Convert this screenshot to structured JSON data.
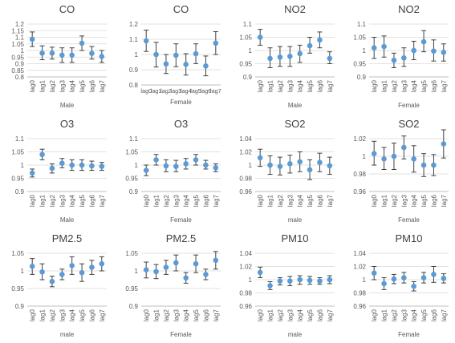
{
  "colors": {
    "marker": "#5b9bd5",
    "errorbar": "#404040",
    "axis": "#bfbfbf",
    "gridline": "#d9d9d9",
    "text": "#595959",
    "title": "#404040"
  },
  "chart_data": [
    {
      "type": "scatter",
      "title": "CO",
      "xlabel": "Male",
      "categories": [
        "lag0",
        "lag1",
        "lag2",
        "lag3",
        "lag4",
        "lag5",
        "lag6",
        "lag7"
      ],
      "ylim": [
        0.8,
        1.2
      ],
      "yticks": [
        "0.8",
        "0.85",
        "0.9",
        "0.95",
        "1",
        "1.05",
        "1.1",
        "1.15",
        "1.2"
      ],
      "series": [
        {
          "values": [
            1.085,
            0.98,
            0.98,
            0.965,
            0.965,
            1.055,
            0.978,
            0.955
          ],
          "lower": [
            1.03,
            0.93,
            0.935,
            0.91,
            0.91,
            1.0,
            0.935,
            0.91
          ],
          "upper": [
            1.14,
            1.035,
            1.025,
            1.02,
            1.02,
            1.11,
            1.03,
            1.0
          ]
        }
      ],
      "grid": true,
      "tick_rotation": -90
    },
    {
      "type": "scatter",
      "title": "CO",
      "xlabel": "Female",
      "categories": [
        "lag0",
        "lag1",
        "lag2",
        "lag3",
        "lag4",
        "lag5",
        "lag6",
        "lag7"
      ],
      "ylim": [
        0.8,
        1.2
      ],
      "yticks": [
        "0.8",
        "0.9",
        "1",
        "1.1",
        "1.2"
      ],
      "series": [
        {
          "values": [
            1.09,
            1.0,
            0.938,
            0.995,
            0.935,
            1.005,
            0.925,
            1.075
          ],
          "lower": [
            1.02,
            0.918,
            0.875,
            0.92,
            0.865,
            0.94,
            0.86,
            1.0
          ],
          "upper": [
            1.16,
            1.08,
            1.0,
            1.07,
            1.005,
            1.07,
            0.99,
            1.15
          ]
        }
      ],
      "grid": true,
      "tick_rotation": 0
    },
    {
      "type": "scatter",
      "title": "NO2",
      "xlabel": "Male",
      "categories": [
        "lag0",
        "lag1",
        "lag2",
        "lag3",
        "lag4",
        "lag5",
        "lag6",
        "lag7"
      ],
      "ylim": [
        0.9,
        1.1
      ],
      "yticks": [
        "0.9",
        "0.95",
        "1",
        "1.05",
        "1.1"
      ],
      "series": [
        {
          "values": [
            1.05,
            0.97,
            0.975,
            0.978,
            0.988,
            1.018,
            1.04,
            0.97
          ],
          "lower": [
            1.02,
            0.935,
            0.94,
            0.94,
            0.955,
            0.99,
            1.01,
            0.95
          ],
          "upper": [
            1.08,
            1.01,
            1.015,
            1.015,
            1.02,
            1.05,
            1.07,
            0.995
          ]
        }
      ],
      "grid": true,
      "tick_rotation": -90
    },
    {
      "type": "scatter",
      "title": "NO2",
      "xlabel": "Female",
      "categories": [
        "lag0",
        "lag1",
        "lag2",
        "lag3",
        "lag4",
        "lag5",
        "lag6",
        "lag7"
      ],
      "ylim": [
        0.9,
        1.1
      ],
      "yticks": [
        "0.9",
        "0.95",
        "1",
        "1.05",
        "1.1"
      ],
      "series": [
        {
          "values": [
            1.01,
            1.015,
            0.963,
            0.972,
            1.0,
            1.033,
            0.998,
            0.993
          ],
          "lower": [
            0.97,
            0.975,
            0.935,
            0.94,
            0.965,
            0.995,
            0.96,
            0.96
          ],
          "upper": [
            1.05,
            1.055,
            0.99,
            1.01,
            1.035,
            1.075,
            1.04,
            1.025
          ]
        }
      ],
      "grid": true,
      "tick_rotation": -90
    },
    {
      "type": "scatter",
      "title": "O3",
      "xlabel": "Male",
      "categories": [
        "lag0",
        "lag1",
        "lag2",
        "lag3",
        "lag4",
        "lag5",
        "lag6",
        "lag7"
      ],
      "ylim": [
        0.9,
        1.1
      ],
      "yticks": [
        "0.9",
        "0.95",
        "1",
        "1.05",
        "1.1"
      ],
      "series": [
        {
          "values": [
            0.97,
            1.04,
            0.988,
            1.007,
            1.0,
            1.0,
            0.997,
            0.995
          ],
          "lower": [
            0.955,
            1.02,
            0.97,
            0.99,
            0.98,
            0.98,
            0.98,
            0.98
          ],
          "upper": [
            0.985,
            1.06,
            1.005,
            1.025,
            1.02,
            1.02,
            1.015,
            1.01
          ]
        }
      ],
      "grid": true,
      "tick_rotation": -90
    },
    {
      "type": "scatter",
      "title": "O3",
      "xlabel": "Female",
      "categories": [
        "lag0",
        "lag1",
        "lag2",
        "lag3",
        "lag4",
        "lag5",
        "lag6",
        "lag7"
      ],
      "ylim": [
        0.9,
        1.1
      ],
      "yticks": [
        "0.9",
        "0.95",
        "1",
        "1.05",
        "1.1"
      ],
      "series": [
        {
          "values": [
            0.98,
            1.02,
            0.997,
            0.995,
            1.005,
            1.02,
            1.0,
            0.99
          ],
          "lower": [
            0.96,
            1.0,
            0.975,
            0.975,
            0.985,
            1.0,
            0.985,
            0.975
          ],
          "upper": [
            1.0,
            1.04,
            1.02,
            1.018,
            1.025,
            1.04,
            1.018,
            1.005
          ]
        }
      ],
      "grid": true,
      "tick_rotation": -90
    },
    {
      "type": "scatter",
      "title": "SO2",
      "xlabel": "male",
      "categories": [
        "lag0",
        "lag1",
        "lag2",
        "lag3",
        "lag4",
        "lag5",
        "lag6",
        "lag7"
      ],
      "ylim": [
        0.96,
        1.04
      ],
      "yticks": [
        "0.96",
        "0.98",
        "1",
        "1.02",
        "1.04"
      ],
      "series": [
        {
          "values": [
            1.011,
            1.0,
            0.998,
            1.002,
            1.005,
            0.993,
            1.004,
            0.999
          ],
          "lower": [
            0.998,
            0.986,
            0.985,
            0.988,
            0.99,
            0.978,
            0.99,
            0.986
          ],
          "upper": [
            1.024,
            1.014,
            1.012,
            1.015,
            1.02,
            1.008,
            1.018,
            1.012
          ]
        }
      ],
      "grid": true,
      "tick_rotation": -90
    },
    {
      "type": "scatter",
      "title": "SO2",
      "xlabel": "Female",
      "categories": [
        "lag0",
        "lag1",
        "lag2",
        "lag3",
        "lag4",
        "lag5",
        "lag6",
        "lag7"
      ],
      "ylim": [
        0.96,
        1.02
      ],
      "yticks": [
        "0.96",
        "0.98",
        "1",
        "1.02"
      ],
      "series": [
        {
          "values": [
            1.003,
            0.997,
            1.0,
            1.01,
            0.997,
            0.99,
            0.99,
            1.014
          ],
          "lower": [
            0.99,
            0.985,
            0.985,
            0.997,
            0.982,
            0.977,
            0.978,
            0.998
          ],
          "upper": [
            1.017,
            1.01,
            1.015,
            1.023,
            1.012,
            1.003,
            1.002,
            1.03
          ]
        }
      ],
      "grid": true,
      "tick_rotation": -90
    },
    {
      "type": "scatter",
      "title": "PM2.5",
      "xlabel": "male",
      "categories": [
        "lag0",
        "lag1",
        "lag2",
        "lag3",
        "lag4",
        "lag5",
        "lag6",
        "lag7"
      ],
      "ylim": [
        0.9,
        1.05
      ],
      "yticks": [
        "0.9",
        "0.95",
        "1",
        "1.05"
      ],
      "series": [
        {
          "values": [
            1.013,
            0.997,
            0.97,
            0.99,
            1.015,
            0.995,
            1.01,
            1.02
          ],
          "lower": [
            0.99,
            0.975,
            0.955,
            0.975,
            0.99,
            0.97,
            0.99,
            1.0
          ],
          "upper": [
            1.035,
            1.02,
            0.985,
            1.005,
            1.04,
            1.02,
            1.03,
            1.04
          ]
        }
      ],
      "grid": true,
      "tick_rotation": -90
    },
    {
      "type": "scatter",
      "title": "PM2.5",
      "xlabel": "Female",
      "categories": [
        "lag0",
        "lag1",
        "lag2",
        "lag3",
        "lag4",
        "lag5",
        "lag6",
        "lag7"
      ],
      "ylim": [
        0.9,
        1.05
      ],
      "yticks": [
        "0.9",
        "0.95",
        "1",
        "1.05"
      ],
      "series": [
        {
          "values": [
            1.003,
            0.998,
            1.01,
            1.023,
            0.98,
            1.02,
            0.99,
            1.03
          ],
          "lower": [
            0.98,
            0.978,
            0.99,
            1.0,
            0.965,
            0.995,
            0.975,
            1.005
          ],
          "upper": [
            1.025,
            1.018,
            1.03,
            1.045,
            0.995,
            1.045,
            1.005,
            1.055
          ]
        }
      ],
      "grid": true,
      "tick_rotation": -90
    },
    {
      "type": "scatter",
      "title": "PM10",
      "xlabel": "male",
      "categories": [
        "lag0",
        "lag1",
        "lag2",
        "lag3",
        "lag4",
        "lag5",
        "lag6",
        "lag7"
      ],
      "ylim": [
        0.96,
        1.04
      ],
      "yticks": [
        "0.96",
        "0.98",
        "1",
        "1.02",
        "1.04"
      ],
      "series": [
        {
          "values": [
            1.011,
            0.991,
            0.998,
            0.998,
            1.0,
            0.999,
            0.998,
            1.0
          ],
          "lower": [
            1.003,
            0.985,
            0.992,
            0.991,
            0.993,
            0.993,
            0.993,
            0.994
          ],
          "upper": [
            1.019,
            0.997,
            1.003,
            1.005,
            1.006,
            1.005,
            1.003,
            1.006
          ]
        }
      ],
      "grid": true,
      "tick_rotation": -90
    },
    {
      "type": "scatter",
      "title": "PM10",
      "xlabel": "Female",
      "categories": [
        "lag0",
        "lag1",
        "lag2",
        "lag3",
        "lag4",
        "lag5",
        "lag6",
        "lag7"
      ],
      "ylim": [
        0.96,
        1.04
      ],
      "yticks": [
        "0.96",
        "0.98",
        "1",
        "1.02",
        "1.04"
      ],
      "series": [
        {
          "values": [
            1.01,
            0.994,
            1.001,
            1.003,
            0.99,
            1.003,
            1.008,
            1.002
          ],
          "lower": [
            1.0,
            0.985,
            0.994,
            0.995,
            0.983,
            0.995,
            0.996,
            0.995
          ],
          "upper": [
            1.02,
            1.003,
            1.008,
            1.011,
            0.997,
            1.011,
            1.02,
            1.009
          ]
        }
      ],
      "grid": true,
      "tick_rotation": -90
    }
  ]
}
